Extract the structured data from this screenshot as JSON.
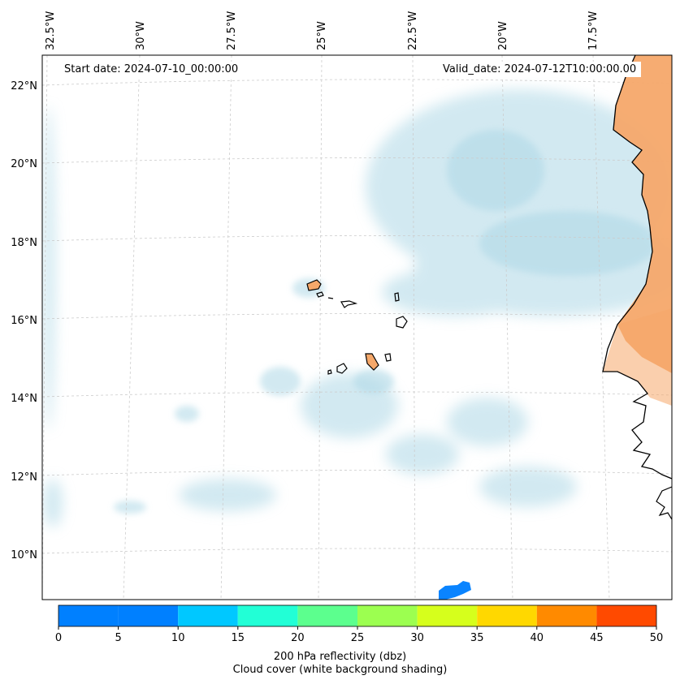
{
  "start_date_text": "Start date: 2024-07-10_00:00:00",
  "valid_date_text": "Valid_date: 2024-07-12T10:00:00.00",
  "lon_labels": [
    "32.5°W",
    "30°W",
    "27.5°W",
    "25°W",
    "22.5°W",
    "20°W",
    "17.5°W"
  ],
  "lat_labels": [
    "22°N",
    "20°N",
    "18°N",
    "16°N",
    "14°N",
    "12°N",
    "10°N"
  ],
  "colorbar": {
    "ticks": [
      "0",
      "5",
      "10",
      "15",
      "20",
      "25",
      "30",
      "35",
      "40",
      "45",
      "50"
    ],
    "tick_values": [
      0,
      5,
      10,
      15,
      20,
      25,
      30,
      35,
      40,
      45,
      50
    ],
    "colors": [
      "#0080ff",
      "#00c8ff",
      "#22ffd6",
      "#5cff8e",
      "#9cff50",
      "#d6ff1c",
      "#ffd800",
      "#ff8a00",
      "#ff4a00"
    ],
    "label_line1": "200 hPa reflectivity (dbz)",
    "label_line2": "Cloud cover (white background shading)"
  },
  "colors": {
    "cloud": "#aed8e6",
    "land": "#f5a86a",
    "coast": "#000000",
    "reflectivity": "#0a84ff"
  }
}
